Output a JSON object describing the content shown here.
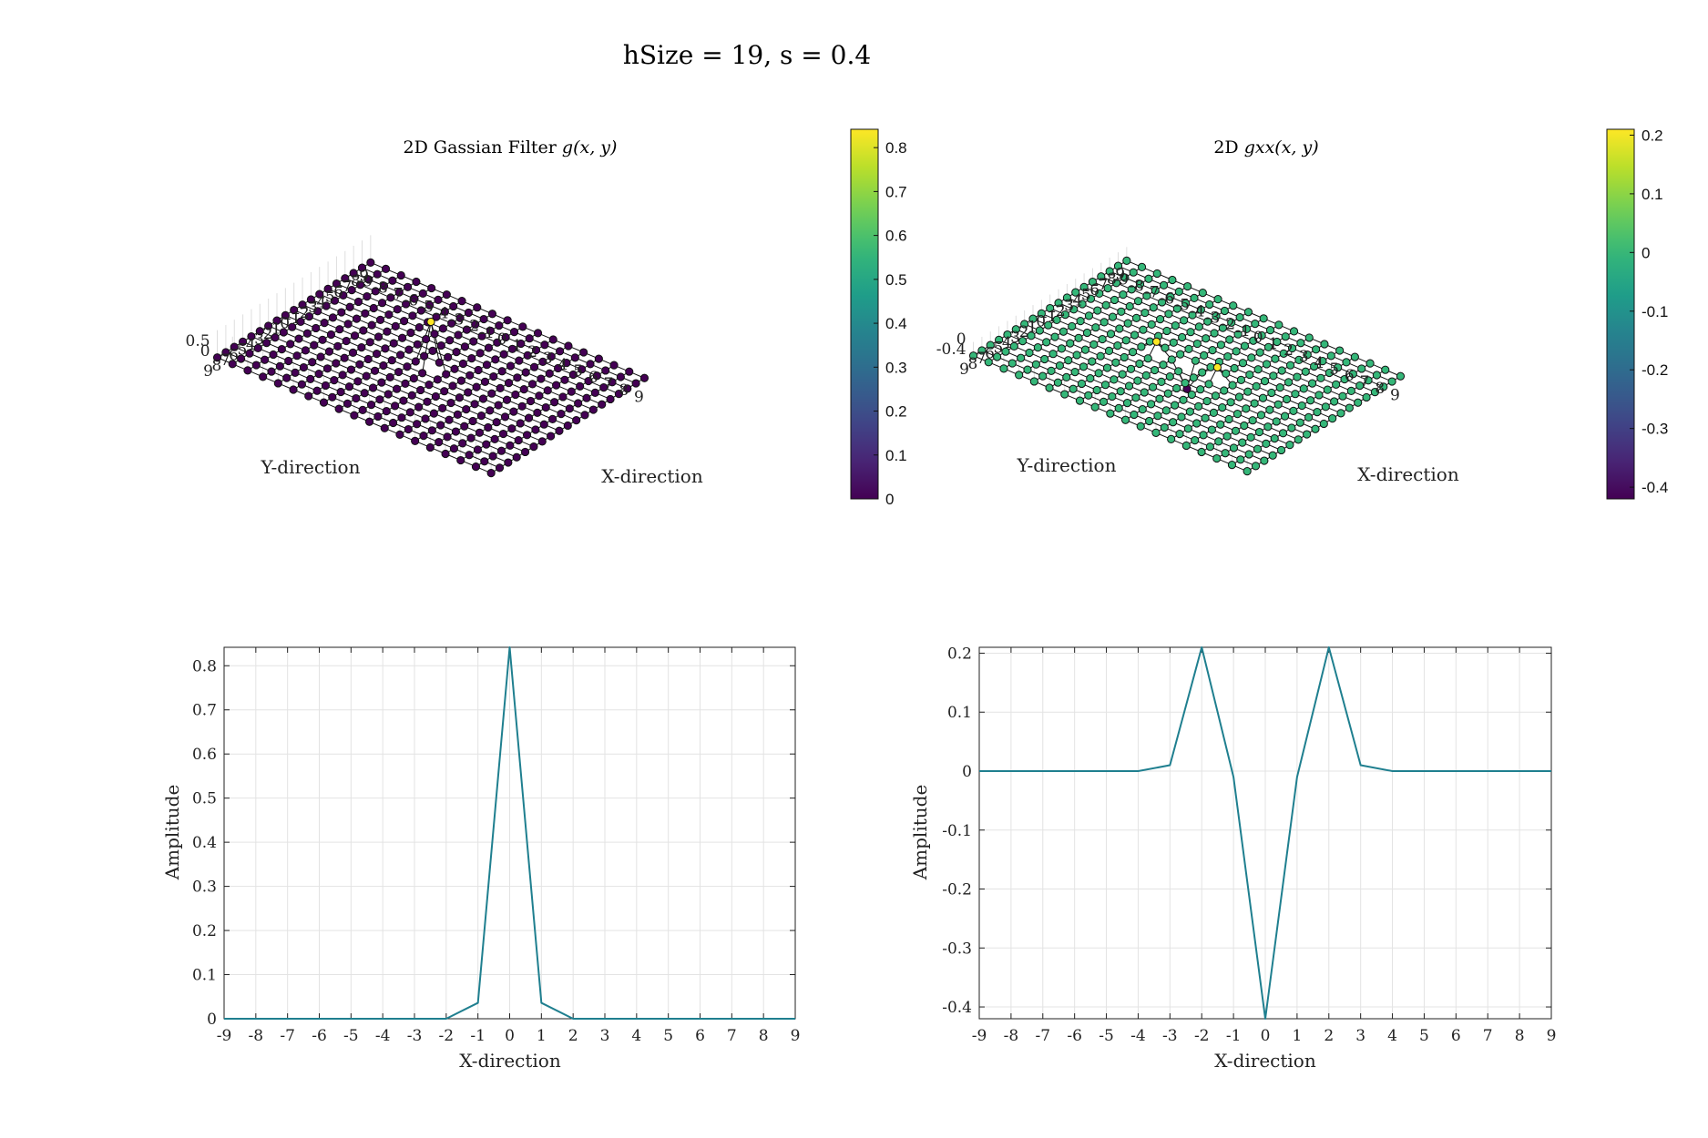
{
  "figure": {
    "title": "hSize = 19, s = 0.4"
  },
  "chart_data": [
    {
      "type": "scatter3d",
      "title_text": "2D Gassian Filter ",
      "title_math": "g(x, y)",
      "xlabel": "X-direction",
      "ylabel": "Y-direction",
      "xlim": [
        -9,
        9
      ],
      "ylim": [
        -9,
        9
      ],
      "zticks": [
        "0",
        "0.5"
      ],
      "grid": "on",
      "colormap": "viridis",
      "clim": [
        0,
        0.8418
      ],
      "colorbar_ticks": [
        "0",
        "0.1",
        "0.2",
        "0.3",
        "0.4",
        "0.5",
        "0.6",
        "0.7",
        "0.8"
      ],
      "colorbar_values": [
        0,
        0.1,
        0.2,
        0.3,
        0.4,
        0.5,
        0.6,
        0.7,
        0.8
      ],
      "grid_values": [
        -9,
        -8,
        -7,
        -6,
        -5,
        -4,
        -3,
        -2,
        -1,
        0,
        1,
        2,
        3,
        4,
        5,
        6,
        7,
        8,
        9
      ],
      "nonzero_points": [
        {
          "x": 0,
          "y": 0,
          "z": 0.8418
        }
      ],
      "default_z": 0
    },
    {
      "type": "scatter3d",
      "title_text": "2D ",
      "title_math": "gxx(x, y)",
      "xlabel": "X-direction",
      "ylabel": "Y-direction",
      "xlim": [
        -9,
        9
      ],
      "ylim": [
        -9,
        9
      ],
      "zticks": [
        "-0.4",
        "0"
      ],
      "grid": "on",
      "colormap": "viridis",
      "clim": [
        -0.42,
        0.21
      ],
      "colorbar_ticks": [
        "-0.4",
        "-0.3",
        "-0.2",
        "-0.1",
        "0",
        "0.1",
        "0.2"
      ],
      "colorbar_values": [
        -0.4,
        -0.3,
        -0.2,
        -0.1,
        0,
        0.1,
        0.2
      ],
      "grid_values": [
        -9,
        -8,
        -7,
        -6,
        -5,
        -4,
        -3,
        -2,
        -1,
        0,
        1,
        2,
        3,
        4,
        5,
        6,
        7,
        8,
        9
      ],
      "nonzero_points": [
        {
          "x": 0,
          "y": 0,
          "z": -0.42
        },
        {
          "x": -2,
          "y": 0,
          "z": 0.21
        },
        {
          "x": 2,
          "y": 0,
          "z": 0.21
        }
      ],
      "default_z": 0
    },
    {
      "type": "line",
      "xlabel": "X-direction",
      "ylabel": "Amplitude",
      "xlim": [
        -9,
        9
      ],
      "ylim": [
        0,
        0.8418
      ],
      "xticks": [
        "-9",
        "-8",
        "-7",
        "-6",
        "-5",
        "-4",
        "-3",
        "-2",
        "-1",
        "0",
        "1",
        "2",
        "3",
        "4",
        "5",
        "6",
        "7",
        "8",
        "9"
      ],
      "yticks": [
        "0",
        "0.1",
        "0.2",
        "0.3",
        "0.4",
        "0.5",
        "0.6",
        "0.7",
        "0.8"
      ],
      "grid": "on",
      "color": "#1f7f8f",
      "x": [
        -9,
        -8,
        -7,
        -6,
        -5,
        -4,
        -3,
        -2,
        -1,
        0,
        1,
        2,
        3,
        4,
        5,
        6,
        7,
        8,
        9
      ],
      "y": [
        0,
        0,
        0,
        0,
        0,
        0,
        0,
        0,
        0.036,
        0.8418,
        0.036,
        0,
        0,
        0,
        0,
        0,
        0,
        0,
        0
      ]
    },
    {
      "type": "line",
      "xlabel": "X-direction",
      "ylabel": "Amplitude",
      "xlim": [
        -9,
        9
      ],
      "ylim": [
        -0.42,
        0.21
      ],
      "xticks": [
        "-9",
        "-8",
        "-7",
        "-6",
        "-5",
        "-4",
        "-3",
        "-2",
        "-1",
        "0",
        "1",
        "2",
        "3",
        "4",
        "5",
        "6",
        "7",
        "8",
        "9"
      ],
      "yticks": [
        "-0.4",
        "-0.3",
        "-0.2",
        "-0.1",
        "0",
        "0.1",
        "0.2"
      ],
      "grid": "on",
      "color": "#1f7f8f",
      "x": [
        -9,
        -8,
        -7,
        -6,
        -5,
        -4,
        -3,
        -2,
        -1,
        0,
        1,
        2,
        3,
        4,
        5,
        6,
        7,
        8,
        9
      ],
      "y": [
        0,
        0,
        0,
        0,
        0,
        0,
        0.01,
        0.21,
        -0.01,
        -0.42,
        -0.01,
        0.21,
        0.01,
        0,
        0,
        0,
        0,
        0,
        0
      ]
    }
  ]
}
